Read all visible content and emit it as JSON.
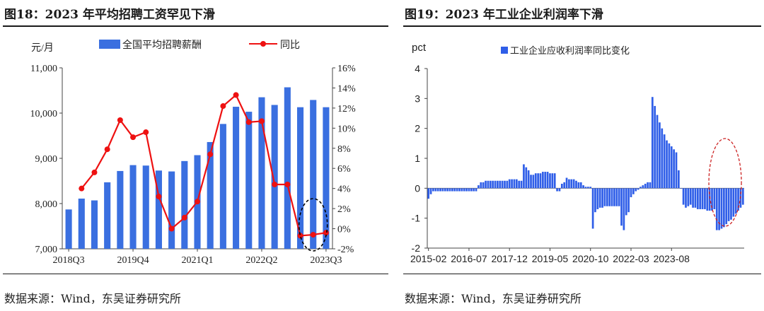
{
  "left": {
    "title": "图18：2023 年平均招聘工资罕见下滑",
    "source": "数据来源：Wind，东吴证券研究所",
    "unit": "元/月",
    "legend_bar": "全国平均招聘薪酬",
    "legend_line": "同比",
    "colors": {
      "bar": "#3a6fe0",
      "line": "#ee1111",
      "ellipse": "#000000"
    }
  },
  "right": {
    "title": "图19：2023 年工业企业利润率下滑",
    "source": "数据来源：Wind，东吴证券研究所",
    "unit": "pct",
    "legend_bar": "工业企业应收利润率同比变化",
    "colors": {
      "bar": "#2f5ee8",
      "ellipse": "#cc2222"
    }
  },
  "chart_data": [
    {
      "type": "bar",
      "xlabel_ticks": [
        "2018Q3",
        "2019Q4",
        "2021Q1",
        "2022Q2",
        "2023Q3"
      ],
      "ylim": [
        7000,
        11000
      ],
      "yticks": [
        "7,000",
        "8,000",
        "9,000",
        "10,000",
        "11,000"
      ],
      "y2lim": [
        -2,
        16
      ],
      "y2ticks": [
        "-2%",
        "0%",
        "2%",
        "4%",
        "6%",
        "8%",
        "10%",
        "12%",
        "14%",
        "16%"
      ],
      "series": [
        {
          "name": "全国平均招聘薪酬",
          "type": "bar",
          "values": [
            7870,
            8110,
            8070,
            8470,
            8720,
            8850,
            8840,
            8730,
            8710,
            8940,
            9070,
            9360,
            9760,
            10140,
            10030,
            10350,
            10180,
            10570,
            10130,
            10290,
            10130
          ]
        },
        {
          "name": "同比",
          "type": "line",
          "values": [
            null,
            4.0,
            5.6,
            7.9,
            10.8,
            9.1,
            9.6,
            3.2,
            0.0,
            1.1,
            2.7,
            7.4,
            12.2,
            13.3,
            10.6,
            10.7,
            4.4,
            4.4,
            -0.7,
            -0.6,
            -0.4
          ]
        }
      ]
    },
    {
      "type": "bar",
      "ylim": [
        -2,
        4
      ],
      "yticks": [
        "-2",
        "-1",
        "0",
        "1",
        "2",
        "3",
        "4"
      ],
      "xticks": [
        "2015-02",
        "2016-07",
        "2017-12",
        "2019-05",
        "2020-10",
        "2022-03",
        "2023-08"
      ],
      "x_start": "2015-02",
      "series": [
        {
          "name": "工业企业应收利润率同比变化",
          "values": [
            -0.35,
            -0.2,
            -0.1,
            -0.1,
            -0.1,
            -0.1,
            -0.1,
            -0.1,
            -0.1,
            -0.1,
            -0.1,
            -0.1,
            -0.1,
            -0.1,
            -0.1,
            -0.1,
            -0.1,
            -0.1,
            -0.1,
            -0.1,
            -0.1,
            0.1,
            0.2,
            0.2,
            0.25,
            0.25,
            0.25,
            0.25,
            0.25,
            0.25,
            0.25,
            0.25,
            0.25,
            0.25,
            0.3,
            0.3,
            0.3,
            0.3,
            0.25,
            0.25,
            0.8,
            0.7,
            0.6,
            0.45,
            0.45,
            0.5,
            0.5,
            0.5,
            0.55,
            0.55,
            0.55,
            0.5,
            0.5,
            0.5,
            -0.1,
            -0.1,
            0.15,
            0.2,
            0.35,
            0.3,
            0.3,
            0.3,
            0.25,
            0.2,
            0.2,
            0.1,
            0.05,
            0.05,
            0.05,
            -1.35,
            -0.8,
            -0.7,
            -0.65,
            -0.65,
            -0.6,
            -0.6,
            -0.6,
            -0.6,
            -0.6,
            -0.6,
            -0.6,
            -1.25,
            -1.4,
            -0.9,
            -0.8,
            -0.3,
            -0.2,
            -0.1,
            -0.05,
            0.05,
            0.1,
            0.15,
            0.2,
            0.2,
            3.05,
            2.75,
            2.45,
            2.2,
            2.0,
            1.8,
            1.6,
            1.5,
            1.4,
            1.3,
            1.2,
            0.6,
            0.0,
            -0.55,
            -0.65,
            -0.6,
            -0.55,
            -0.65,
            -0.65,
            -0.7,
            -0.7,
            -0.7,
            -0.7,
            -0.75,
            -0.75,
            -0.75,
            -0.7,
            -1.4,
            -1.4,
            -1.35,
            -1.3,
            -1.2,
            -1.1,
            -1.05,
            -0.95,
            -0.85,
            -0.75,
            -0.65,
            -0.55
          ]
        }
      ]
    }
  ]
}
